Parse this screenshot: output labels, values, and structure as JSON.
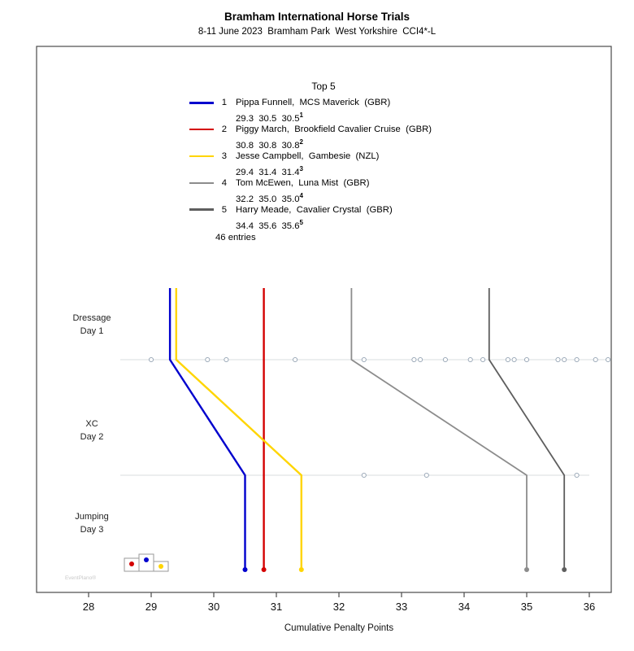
{
  "header": {
    "title": "Bramham International Horse Trials",
    "subtitle": "8-11 June 2023  Bramham Park  West Yorkshire  CCI4*-L"
  },
  "legend": {
    "title": "Top 5",
    "entries_note": "46 entries"
  },
  "axis": {
    "label": "Cumulative Penalty Points"
  },
  "watermark": "EventPlano®",
  "podium_icon": {
    "left_dot_color": "#d40000",
    "middle_dot_color": "#0000cd",
    "right_dot_color": "#ffd500"
  },
  "chart_data": {
    "type": "line",
    "title": "Bramham International Horse Trials",
    "subtitle": "8-11 June 2023  Bramham Park  West Yorkshire  CCI4*-L",
    "xlabel": "Cumulative Penalty Points",
    "x_ticks": [
      28,
      29,
      30,
      31,
      32,
      33,
      34,
      35,
      36
    ],
    "x_range": [
      27.2,
      36.4
    ],
    "grid": "two horizontal checkpoint lines with open-circle markers for the whole field",
    "legend_position": "top-center",
    "phases": [
      {
        "line1": "Dressage",
        "line2": "Day 1"
      },
      {
        "line1": "XC",
        "line2": "Day 2"
      },
      {
        "line1": "Jumping",
        "line2": "Day 3"
      }
    ],
    "series": [
      {
        "rank": 1,
        "rider": "Pippa Funnell",
        "horse": "MCS Maverick",
        "country": "GBR",
        "color": "#0000cd",
        "scores": [
          29.3,
          30.5,
          30.5
        ]
      },
      {
        "rank": 2,
        "rider": "Piggy March",
        "horse": "Brookfield Cavalier Cruise",
        "country": "GBR",
        "color": "#d40000",
        "scores": [
          30.8,
          30.8,
          30.8
        ]
      },
      {
        "rank": 3,
        "rider": "Jesse Campbell",
        "horse": "Gambesie",
        "country": "NZL",
        "color": "#ffd500",
        "scores": [
          29.4,
          31.4,
          31.4
        ]
      },
      {
        "rank": 4,
        "rider": "Tom McEwen",
        "horse": "Luna Mist",
        "country": "GBR",
        "color": "#8c8c8c",
        "scores": [
          32.2,
          35.0,
          35.0
        ]
      },
      {
        "rank": 5,
        "rider": "Harry Meade",
        "horse": "Cavalier Crystal",
        "country": "GBR",
        "color": "#5e5e5e",
        "scores": [
          34.4,
          35.6,
          35.6
        ]
      }
    ],
    "other_entries": {
      "dressage_scores": [
        29.0,
        29.9,
        30.2,
        31.3,
        32.4,
        33.2,
        33.3,
        33.7,
        34.1,
        34.3,
        34.7,
        34.8,
        35.0,
        35.5,
        35.6,
        35.8,
        36.1,
        36.3
      ],
      "after_xc_scores": [
        32.4,
        33.4,
        35.8
      ]
    },
    "entries_total": 46
  }
}
